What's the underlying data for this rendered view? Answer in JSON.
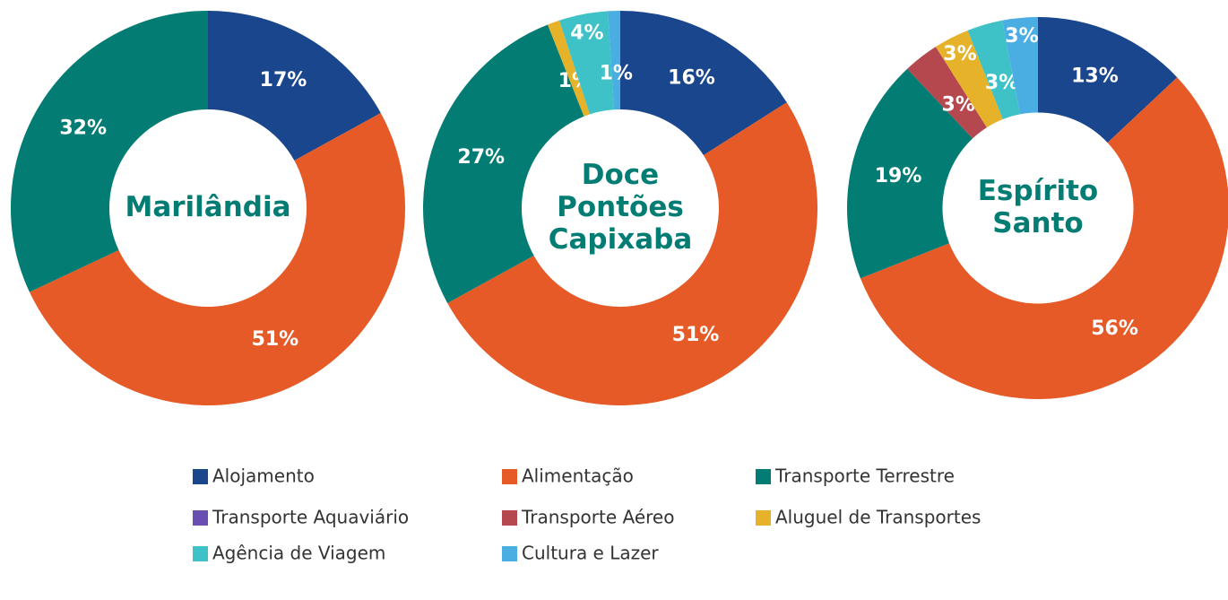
{
  "legend": {
    "categories": [
      "Alojamento",
      "Alimentação",
      "Transporte Terrestre",
      "Transporte Aquaviário",
      "Transporte Aéreo",
      "Aluguel de Transportes",
      "Agência de Viagem",
      "Cultura e Lazer"
    ],
    "colors": [
      "#1a468e",
      "#e55a26",
      "#037d74",
      "#6a4fb0",
      "#b5474f",
      "#e5b22a",
      "#3ec2c8",
      "#4aaee3"
    ]
  },
  "chart_data": [
    {
      "type": "pie",
      "title": "Marilândia",
      "values": [
        17,
        51,
        32,
        null,
        null,
        null,
        null,
        null
      ],
      "value_labels": [
        "17%",
        "51%",
        "32%",
        null,
        null,
        null,
        null,
        null
      ]
    },
    {
      "type": "pie",
      "title": "Doce Pontões Capixaba",
      "values": [
        16,
        51,
        27,
        null,
        null,
        1,
        4,
        1
      ],
      "value_labels": [
        "16%",
        "51%",
        "27%",
        null,
        null,
        "1%",
        "4%",
        "1%"
      ]
    },
    {
      "type": "pie",
      "title": "Espírito Santo",
      "values": [
        13,
        56,
        19,
        null,
        3,
        3,
        3,
        3
      ],
      "value_labels": [
        "13%",
        "56%",
        "19%",
        null,
        "3%",
        "3%",
        "3%",
        "3%"
      ]
    }
  ]
}
